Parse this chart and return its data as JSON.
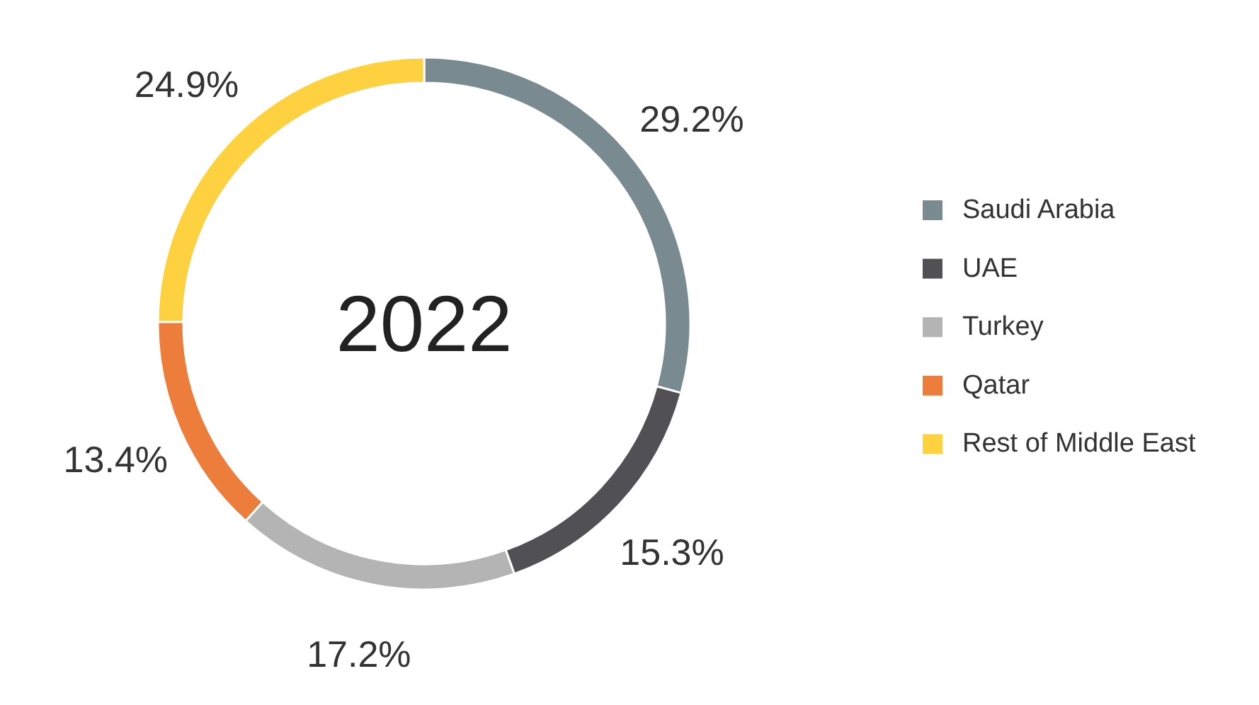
{
  "chart_data": {
    "type": "donut",
    "title": "2022",
    "categories": [
      "Saudi Arabia",
      "UAE",
      "Turkey",
      "Qatar",
      "Rest of Middle East"
    ],
    "values": [
      29.2,
      15.3,
      17.2,
      13.4,
      24.9
    ],
    "colors": [
      "#7a8a91",
      "#505055",
      "#b4b4b4",
      "#ed7d3a",
      "#fdd13f"
    ],
    "value_labels": [
      "29.2%",
      "15.3%",
      "17.2%",
      "13.4%",
      "24.9%"
    ],
    "legend": "right"
  }
}
